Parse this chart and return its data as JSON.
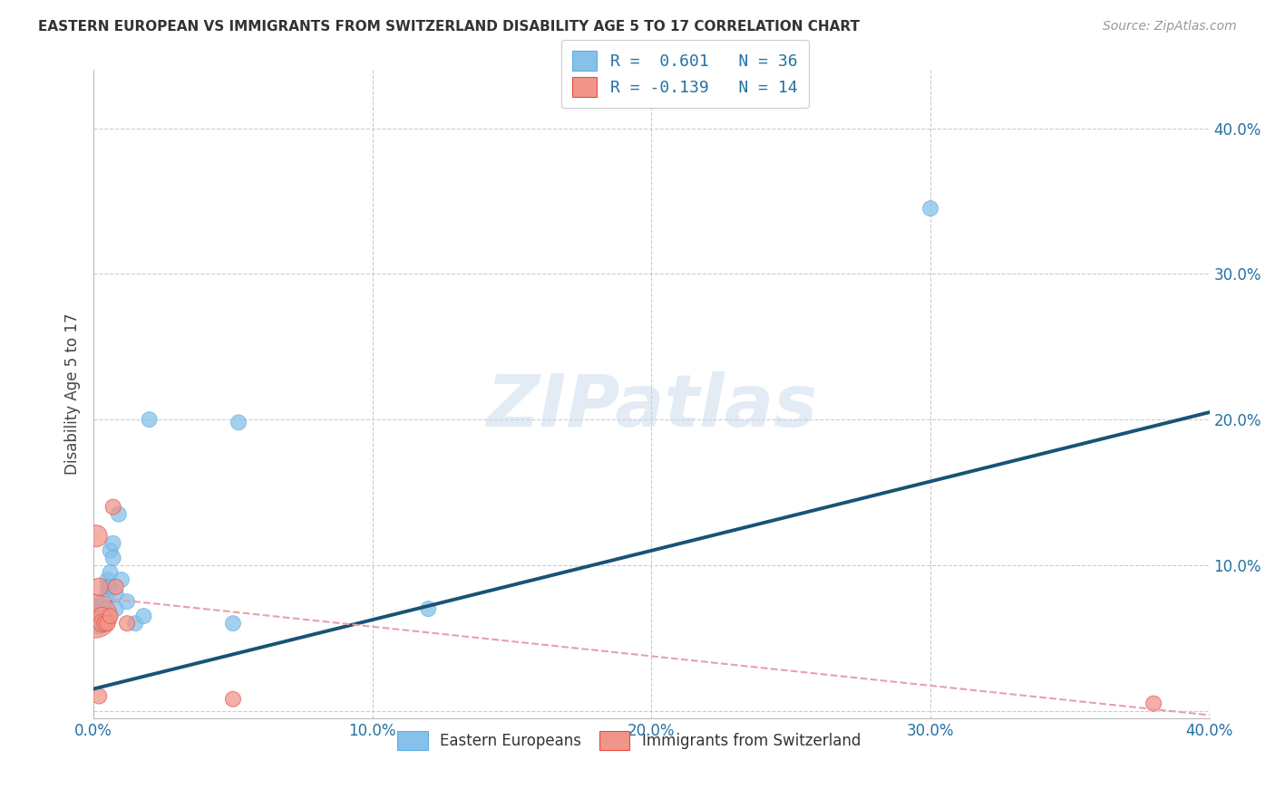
{
  "title": "EASTERN EUROPEAN VS IMMIGRANTS FROM SWITZERLAND DISABILITY AGE 5 TO 17 CORRELATION CHART",
  "source": "Source: ZipAtlas.com",
  "ylabel": "Disability Age 5 to 17",
  "xlim": [
    0.0,
    0.4
  ],
  "ylim": [
    -0.005,
    0.44
  ],
  "xticks": [
    0.0,
    0.1,
    0.2,
    0.3,
    0.4
  ],
  "yticks": [
    0.1,
    0.2,
    0.3,
    0.4
  ],
  "xticklabels": [
    "0.0%",
    "10.0%",
    "20.0%",
    "30.0%",
    "40.0%"
  ],
  "yticklabels": [
    "10.0%",
    "20.0%",
    "30.0%",
    "40.0%"
  ],
  "blue_color": "#85C1E9",
  "pink_color": "#F1948A",
  "blue_edge_color": "#5DADE2",
  "pink_edge_color": "#E74C3C",
  "blue_line_color": "#1A5276",
  "pink_line_color": "#E8A0A8",
  "tick_color": "#2471A3",
  "watermark": "ZIPatlas",
  "legend_r1_label": "R =  0.601   N = 36",
  "legend_r2_label": "R = -0.139   N = 14",
  "blue_line_x0": 0.0,
  "blue_line_y0": 0.015,
  "blue_line_x1": 0.4,
  "blue_line_y1": 0.205,
  "pink_line_x0": 0.0,
  "pink_line_y0": 0.078,
  "pink_line_x1": 0.4,
  "pink_line_y1": -0.003,
  "blue_x": [
    0.001,
    0.001,
    0.002,
    0.002,
    0.002,
    0.002,
    0.003,
    0.003,
    0.003,
    0.003,
    0.003,
    0.004,
    0.004,
    0.004,
    0.004,
    0.005,
    0.005,
    0.005,
    0.005,
    0.006,
    0.006,
    0.006,
    0.007,
    0.007,
    0.008,
    0.008,
    0.009,
    0.01,
    0.012,
    0.015,
    0.018,
    0.02,
    0.05,
    0.052,
    0.12,
    0.3
  ],
  "blue_y": [
    0.065,
    0.068,
    0.06,
    0.072,
    0.063,
    0.07,
    0.065,
    0.072,
    0.06,
    0.067,
    0.063,
    0.068,
    0.062,
    0.07,
    0.075,
    0.09,
    0.085,
    0.065,
    0.08,
    0.11,
    0.085,
    0.095,
    0.115,
    0.105,
    0.07,
    0.08,
    0.135,
    0.09,
    0.075,
    0.06,
    0.065,
    0.2,
    0.06,
    0.198,
    0.07,
    0.345
  ],
  "blue_sizes": [
    500,
    400,
    300,
    200,
    150,
    200,
    150,
    200,
    150,
    150,
    150,
    150,
    150,
    150,
    150,
    150,
    150,
    150,
    150,
    150,
    150,
    150,
    150,
    150,
    150,
    150,
    150,
    150,
    150,
    150,
    150,
    150,
    150,
    150,
    150,
    150
  ],
  "pink_x": [
    0.0005,
    0.001,
    0.002,
    0.002,
    0.003,
    0.003,
    0.004,
    0.005,
    0.006,
    0.007,
    0.008,
    0.012,
    0.05,
    0.38
  ],
  "pink_y": [
    0.065,
    0.12,
    0.085,
    0.01,
    0.065,
    0.06,
    0.06,
    0.06,
    0.065,
    0.14,
    0.085,
    0.06,
    0.008,
    0.005
  ],
  "pink_sizes": [
    1200,
    300,
    200,
    150,
    200,
    200,
    150,
    150,
    150,
    150,
    150,
    150,
    150,
    150
  ]
}
